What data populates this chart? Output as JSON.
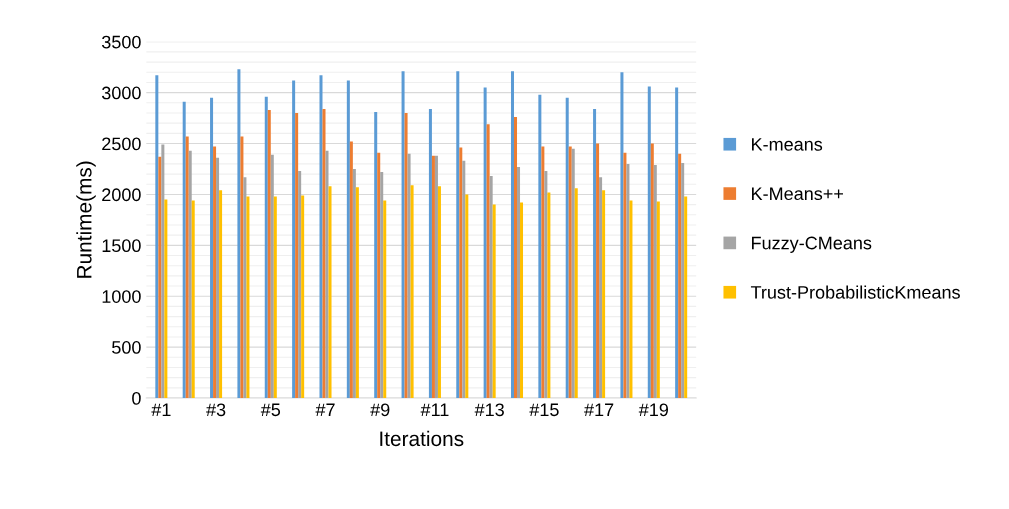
{
  "chart_data": {
    "type": "bar",
    "xlabel": "Iterations",
    "ylabel": "Runtime(ms)",
    "categories": [
      "#1",
      null,
      "#3",
      null,
      "#5",
      null,
      "#7",
      null,
      "#9",
      null,
      "#11",
      null,
      "#13",
      null,
      "#15",
      null,
      "#17",
      null,
      "#19",
      null
    ],
    "series": [
      {
        "name": "K-means",
        "color": "#5b9bd5",
        "values": [
          3170,
          2910,
          2950,
          3230,
          2960,
          3120,
          3170,
          3120,
          2810,
          3210,
          2840,
          3210,
          3050,
          3210,
          2980,
          2950,
          2840,
          3200,
          3060,
          3050
        ]
      },
      {
        "name": "K-Means++",
        "color": "#ed7d31",
        "values": [
          2370,
          2570,
          2470,
          2570,
          2830,
          2800,
          2840,
          2520,
          2410,
          2800,
          2380,
          2460,
          2690,
          2760,
          2470,
          2470,
          2500,
          2410,
          2500,
          2400
        ]
      },
      {
        "name": "Fuzzy-CMeans",
        "color": "#a5a5a5",
        "values": [
          2490,
          2430,
          2360,
          2170,
          2390,
          2230,
          2430,
          2250,
          2220,
          2400,
          2380,
          2330,
          2180,
          2270,
          2230,
          2450,
          2170,
          2300,
          2290,
          2310
        ]
      },
      {
        "name": "Trust-ProbabilisticKmeans",
        "color": "#ffc000",
        "values": [
          1950,
          1940,
          2040,
          1980,
          1980,
          1990,
          2080,
          2070,
          1940,
          2090,
          2080,
          2000,
          1900,
          1920,
          2020,
          2060,
          2040,
          1940,
          1930,
          1980
        ]
      }
    ],
    "ylim": [
      0,
      3500
    ],
    "yticks": [
      0,
      {
        "value": 100,
        "label": null
      },
      {
        "value": 200,
        "label": null
      },
      {
        "value": 300,
        "label": null
      },
      {
        "value": 400,
        "label": null
      },
      500,
      {
        "value": 600,
        "label": null
      },
      {
        "value": 700,
        "label": null
      },
      {
        "value": 800,
        "label": null
      },
      {
        "value": 900,
        "label": null
      },
      1000,
      {
        "value": 1100,
        "label": null
      },
      {
        "value": 1200,
        "label": null
      },
      {
        "value": 1300,
        "label": null
      },
      {
        "value": 1400,
        "label": null
      },
      1500,
      {
        "value": 1600,
        "label": null
      },
      {
        "value": 1700,
        "label": null
      },
      {
        "value": 1800,
        "label": null
      },
      {
        "value": 1900,
        "label": null
      },
      2000,
      {
        "value": 2100,
        "label": null
      },
      {
        "value": 2200,
        "label": null
      },
      {
        "value": 2300,
        "label": null
      },
      {
        "value": 2400,
        "label": null
      },
      2500,
      {
        "value": 2600,
        "label": null
      },
      {
        "value": 2700,
        "label": null
      },
      {
        "value": 2800,
        "label": null
      },
      {
        "value": 2900,
        "label": null
      },
      3000,
      {
        "value": 3100,
        "label": null
      },
      {
        "value": 3200,
        "label": null
      },
      {
        "value": 3300,
        "label": null
      },
      {
        "value": 3400,
        "label": null
      },
      3500
    ],
    "grid": "y",
    "legend": "right"
  }
}
